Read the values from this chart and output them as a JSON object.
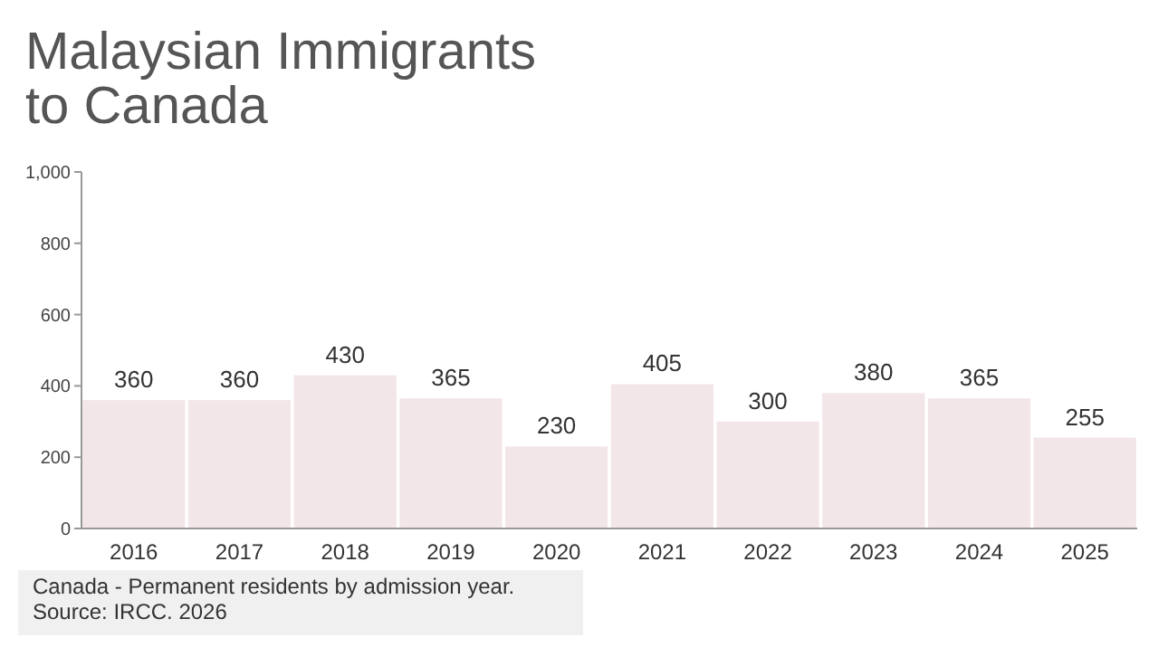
{
  "chart_data": {
    "type": "bar",
    "title": "Malaysian Immigrants\nto Canada",
    "categories": [
      "2016",
      "2017",
      "2018",
      "2019",
      "2020",
      "2021",
      "2022",
      "2023",
      "2024",
      "2025"
    ],
    "values": [
      360,
      360,
      430,
      365,
      230,
      405,
      300,
      380,
      365,
      255
    ],
    "color": "#f3e6e8",
    "data_labels": true,
    "grid": false,
    "ylim": [
      0,
      1000
    ],
    "yticks": [
      0,
      200,
      400,
      600,
      800,
      {
        "value": 1000,
        "label": "1,000"
      }
    ],
    "annotations": [
      "Canada - Permanent residents by admission year.",
      "Source: IRCC. 2026"
    ]
  }
}
